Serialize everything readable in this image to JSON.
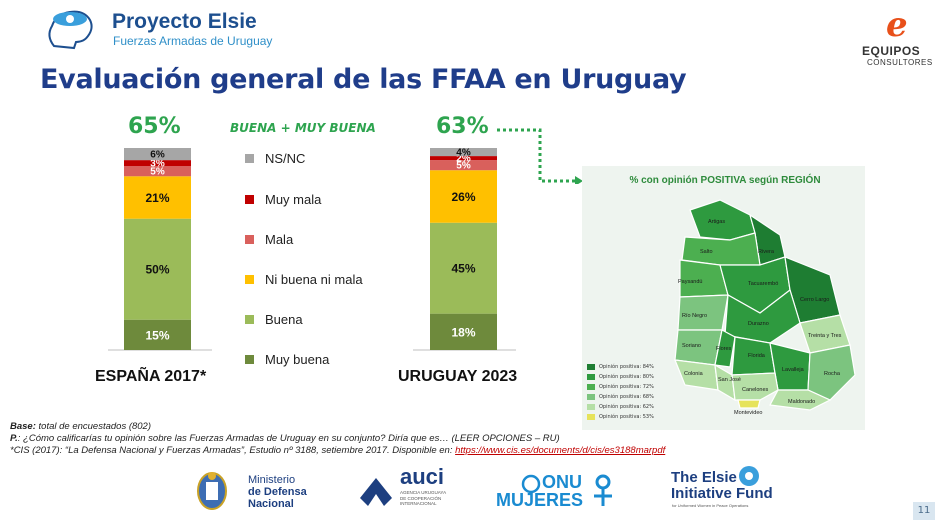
{
  "header": {
    "logo_title": "Proyecto Elsie",
    "logo_subtitle": "Fuerzas Armadas de Uruguay",
    "brand_name": "EQUIPOS",
    "brand_sub": "CONSULTORES"
  },
  "title": "Evaluación general de las FFAA en Uruguay",
  "highlight_label": "BUENA + MUY BUENA",
  "colors": {
    "nsnc": "#a6a6a6",
    "muy_mala": "#c00000",
    "mala": "#d9605c",
    "ni": "#ffc000",
    "buena": "#9bbb59",
    "muy_buena": "#6e8a3c",
    "accent_green": "#2ea44f",
    "title_blue": "#1f3d8a"
  },
  "chart_data": {
    "type": "bar",
    "stacked": true,
    "categories": [
      "ESPAÑA 2017*",
      "URUGUAY 2023"
    ],
    "positive_totals": [
      "65%",
      "63%"
    ],
    "series": [
      {
        "name": "Muy buena",
        "values": [
          15,
          18
        ],
        "labels": [
          "15%",
          "18%"
        ]
      },
      {
        "name": "Buena",
        "values": [
          50,
          45
        ],
        "labels": [
          "50%",
          "45%"
        ]
      },
      {
        "name": "Ni buena ni mala",
        "values": [
          21,
          26
        ],
        "labels": [
          "21%",
          "26%"
        ]
      },
      {
        "name": "Mala",
        "values": [
          5,
          5
        ],
        "labels": [
          "5%",
          "5%"
        ]
      },
      {
        "name": "Muy mala",
        "values": [
          3,
          2
        ],
        "labels": [
          "3%",
          "2%"
        ]
      },
      {
        "name": "NS/NC",
        "values": [
          6,
          4
        ],
        "labels": [
          "6%",
          "4%"
        ]
      }
    ],
    "legend": [
      "NS/NC",
      "Muy mala",
      "Mala",
      "Ni buena ni mala",
      "Buena",
      "Muy buena"
    ],
    "legend_placement": "right"
  },
  "map": {
    "title": "% con opinión POSITIVA según REGIÓN",
    "legend": [
      {
        "label": "Opinión positiva: 84%",
        "color": "#1e7d32"
      },
      {
        "label": "Opinión positiva: 80%",
        "color": "#2e9a3f"
      },
      {
        "label": "Opinión positiva: 72%",
        "color": "#4caf50"
      },
      {
        "label": "Opinión positiva: 68%",
        "color": "#7cc47f"
      },
      {
        "label": "Opinión positiva: 62%",
        "color": "#b5dfa6"
      },
      {
        "label": "Opinión positiva: 53%",
        "color": "#e6e35a"
      }
    ],
    "regions": [
      "Artigas",
      "Salto",
      "Rivera",
      "Paysandú",
      "Tacuarembó",
      "Cerro Largo",
      "Río Negro",
      "Durazno",
      "Treinta y Tres",
      "Soriano",
      "Flores",
      "Florida",
      "Lavalleja",
      "Rocha",
      "Colonia",
      "San José",
      "Canelones",
      "Maldonado",
      "Montevideo"
    ]
  },
  "footer": {
    "base_label": "Base:",
    "base_text": "total de encuestados (802)",
    "p_label": "P.",
    "p_text": ": ¿Cómo calificarías tu opinión sobre las Fuerzas Armadas de Uruguay en su conjunto? Diría que es…  (LEER OPCIONES – RU)",
    "cis_text": "*CIS (2017): “La Defensa Nacional y Fuerzas Armadas”, Estudio nº 3188, setiembre 2017. Disponible en: ",
    "cis_link": "https://www.cis.es/documents/d/cis/es3188marpdf"
  },
  "logos": {
    "ministerio_1": "Ministerio",
    "ministerio_2": "de Defensa",
    "ministerio_3": "Nacional",
    "auci": "auci",
    "auci_sub_1": "AGENCIA URUGUAYA",
    "auci_sub_2": "DE COOPERACIÓN",
    "auci_sub_3": "INTERNACIONAL",
    "onu_1": "ONU",
    "onu_2": "MUJERES",
    "elsie_1": "The Elsie",
    "elsie_2": "Initiative Fund",
    "elsie_3": "for Uniformed Women in Peace Operations"
  },
  "page_number": "11"
}
